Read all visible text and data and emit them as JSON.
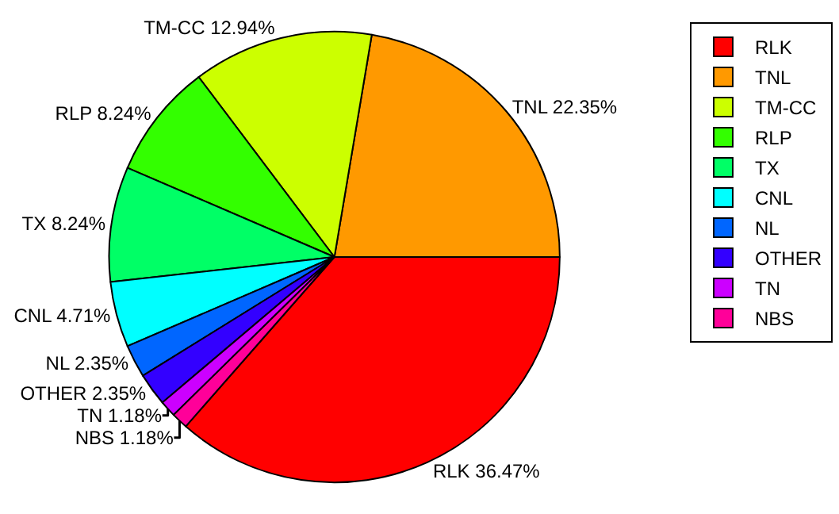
{
  "chart_data": {
    "type": "pie",
    "categories": [
      "RLK",
      "TNL",
      "TM-CC",
      "RLP",
      "TX",
      "CNL",
      "NL",
      "OTHER",
      "TN",
      "NBS"
    ],
    "values": [
      36.47,
      22.35,
      12.94,
      8.24,
      8.24,
      4.71,
      2.35,
      2.35,
      1.18,
      1.18
    ],
    "value_labels": [
      "36.47%",
      "22.35%",
      "12.94%",
      "8.24%",
      "8.24%",
      "4.71%",
      "2.35%",
      "2.35%",
      "1.18%",
      "1.18%"
    ],
    "colors": [
      "#ff0000",
      "#ff9900",
      "#ccff00",
      "#33ff00",
      "#00ff66",
      "#00ffff",
      "#0066ff",
      "#3300ff",
      "#cc00ff",
      "#ff0099"
    ],
    "legend": "top right"
  }
}
